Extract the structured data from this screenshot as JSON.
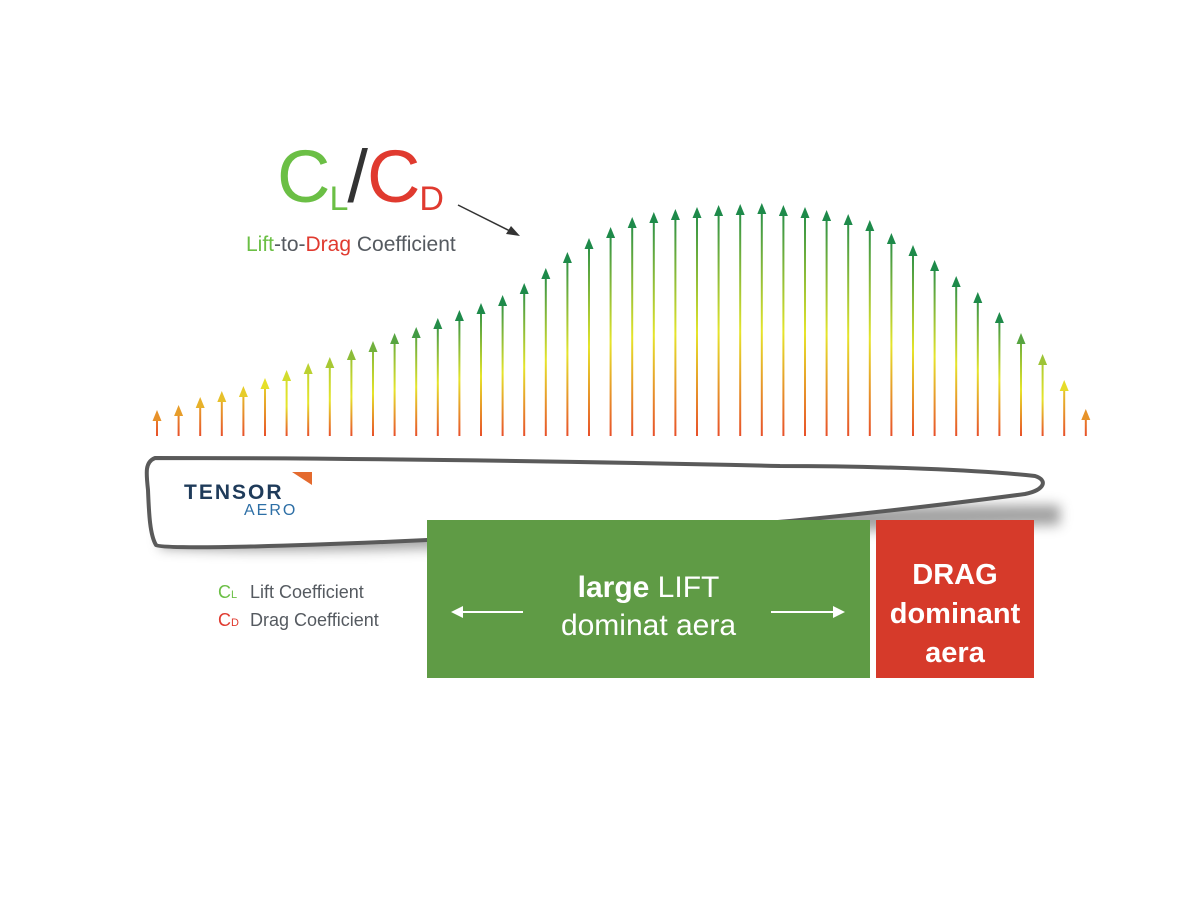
{
  "title": {
    "cl_letter": "C",
    "cl_sub": "L",
    "slash": "/",
    "cd_letter": "C",
    "cd_sub": "D"
  },
  "subtitle": {
    "lift": "Lift",
    "dash1": "-to-",
    "drag": "Drag",
    "rest": " Coefficient"
  },
  "logo": {
    "name": "TENSOR",
    "sub": "AERO"
  },
  "legend": [
    {
      "letter": "C",
      "sub": "L",
      "label": "Lift Coefficient",
      "color": "#6bbf45"
    },
    {
      "letter": "C",
      "sub": "D",
      "label": "Drag Coefficient",
      "color": "#e03a2f"
    }
  ],
  "lift_panel": {
    "bold": "large",
    "line1_rest": " LIFT",
    "line2": "dominat aera",
    "color": "#5f9b45"
  },
  "drag_panel": {
    "line1": "DRAG",
    "line2": "dominant",
    "line3": "aera",
    "color": "#d63a2a"
  },
  "arrow_colors": {
    "base": "#e8502a",
    "mid": "#e6e52a",
    "top": "#1e8a4a"
  }
}
